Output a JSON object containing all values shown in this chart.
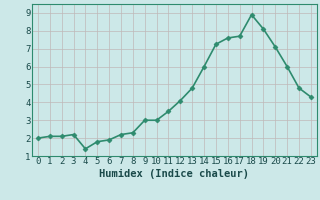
{
  "x": [
    0,
    1,
    2,
    3,
    4,
    5,
    6,
    7,
    8,
    9,
    10,
    11,
    12,
    13,
    14,
    15,
    16,
    17,
    18,
    19,
    20,
    21,
    22,
    23
  ],
  "y": [
    2.0,
    2.1,
    2.1,
    2.2,
    1.4,
    1.8,
    1.9,
    2.2,
    2.3,
    3.0,
    3.0,
    3.5,
    4.1,
    4.8,
    6.0,
    7.25,
    7.6,
    7.7,
    8.9,
    8.1,
    7.1,
    6.0,
    4.8,
    4.3
  ],
  "line_color": "#2e8b6e",
  "marker": "D",
  "marker_size": 2.5,
  "bg_color": "#cce8e8",
  "grid_color": "#c0b8b8",
  "xlabel": "Humidex (Indice chaleur)",
  "xlim": [
    -0.5,
    23.5
  ],
  "ylim": [
    1.0,
    9.5
  ],
  "yticks": [
    1,
    2,
    3,
    4,
    5,
    6,
    7,
    8,
    9
  ],
  "xticks": [
    0,
    1,
    2,
    3,
    4,
    5,
    6,
    7,
    8,
    9,
    10,
    11,
    12,
    13,
    14,
    15,
    16,
    17,
    18,
    19,
    20,
    21,
    22,
    23
  ],
  "xlabel_fontsize": 7.5,
  "tick_fontsize": 6.5,
  "line_width": 1.2
}
